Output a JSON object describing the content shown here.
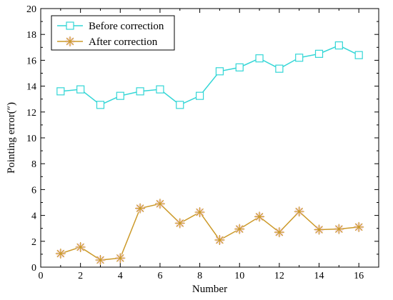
{
  "chart_data": {
    "type": "line",
    "title": "",
    "xlabel": "Number",
    "ylabel": "Pointing error(″)",
    "xlim": [
      0,
      17
    ],
    "ylim": [
      0,
      20
    ],
    "xticks": [
      0,
      2,
      4,
      6,
      8,
      10,
      12,
      14,
      16
    ],
    "yticks": [
      0,
      2,
      4,
      6,
      8,
      10,
      12,
      14,
      16,
      18,
      20
    ],
    "grid": false,
    "legend_position": "top-left",
    "x": [
      1,
      2,
      3,
      4,
      5,
      6,
      7,
      8,
      9,
      10,
      11,
      12,
      13,
      14,
      15,
      16
    ],
    "series": [
      {
        "name": "Before correction",
        "marker": "square",
        "color": "#33d6d6",
        "values": [
          13.6,
          13.75,
          12.55,
          13.25,
          13.6,
          13.75,
          12.55,
          13.25,
          15.15,
          15.45,
          16.15,
          15.35,
          16.2,
          16.5,
          17.15,
          16.4
        ]
      },
      {
        "name": "After correction",
        "marker": "star",
        "color": "#cc9a2a",
        "values": [
          1.05,
          1.55,
          0.55,
          0.7,
          4.55,
          4.9,
          3.4,
          4.25,
          2.1,
          2.95,
          3.9,
          2.7,
          4.3,
          2.9,
          2.95,
          3.1
        ]
      }
    ]
  }
}
